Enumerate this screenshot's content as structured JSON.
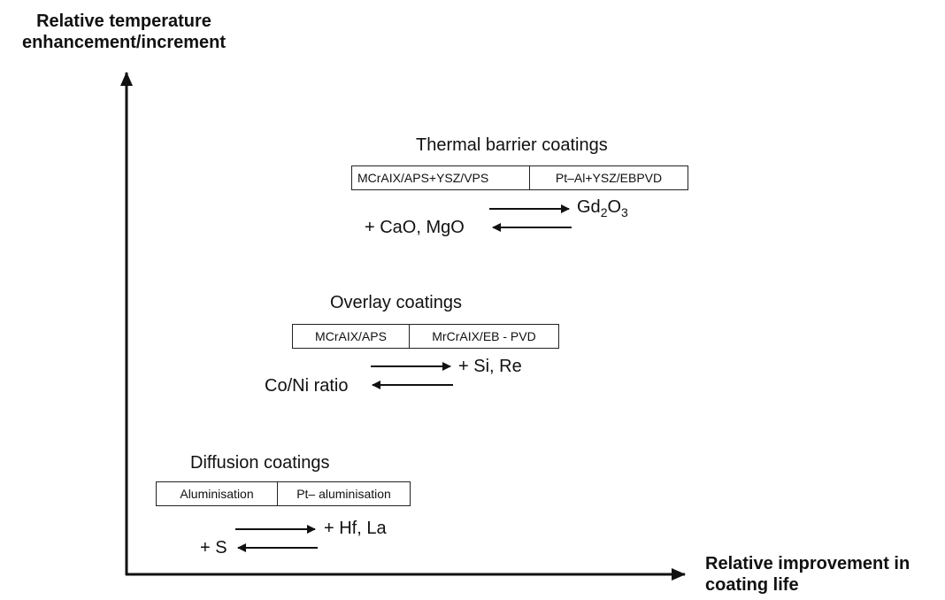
{
  "axes": {
    "y_label_line1": "Relative temperature",
    "y_label_line2": "enhancement/increment",
    "x_label_line1": "Relative improvement in",
    "x_label_line2": "coating life"
  },
  "groups": {
    "thermal": {
      "title": "Thermal barrier coatings",
      "boxes": [
        "MCrAIX/APS+YSZ/VPS",
        "Pt–Al+YSZ/EBPVD"
      ],
      "right_label_main": "Gd",
      "right_label_sub1": "2",
      "right_label_mid": "O",
      "right_label_sub2": "3",
      "left_label": "+ CaO, MgO"
    },
    "overlay": {
      "title": "Overlay coatings",
      "boxes": [
        "MCrAIX/APS",
        "MrCrAIX/EB - PVD"
      ],
      "right_label": "+ Si, Re",
      "left_label": "Co/Ni ratio"
    },
    "diffusion": {
      "title": "Diffusion coatings",
      "boxes": [
        "Aluminisation",
        "Pt– aluminisation"
      ],
      "right_label": "+ Hf, La",
      "left_label": "+ S"
    }
  }
}
